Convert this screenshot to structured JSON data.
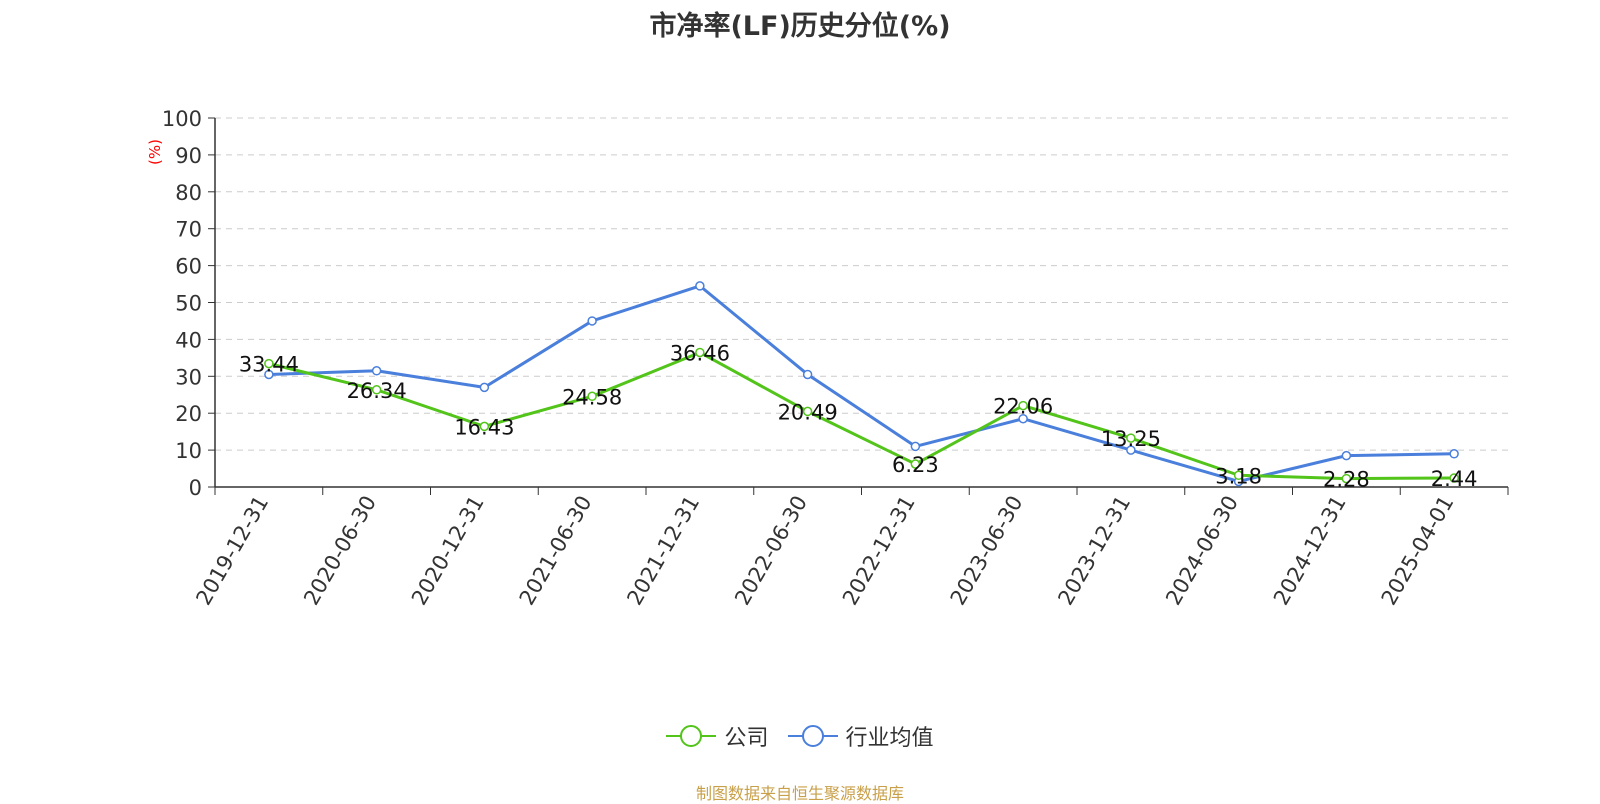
{
  "chart_data": {
    "type": "line",
    "title": "市净率(LF)历史分位(%)",
    "ylabel": "(%)",
    "ylim": [
      0,
      100
    ],
    "yticks": [
      0,
      10,
      20,
      30,
      40,
      50,
      60,
      70,
      80,
      90,
      100
    ],
    "categories": [
      "2019-12-31",
      "2020-06-30",
      "2020-12-31",
      "2021-06-30",
      "2021-12-31",
      "2022-06-30",
      "2022-12-31",
      "2023-06-30",
      "2023-12-31",
      "2024-06-30",
      "2024-12-31",
      "2025-04-01"
    ],
    "series": [
      {
        "name": "公司",
        "color": "#52c41a",
        "values": [
          33.44,
          26.34,
          16.43,
          24.58,
          36.46,
          20.49,
          6.23,
          22.06,
          13.25,
          3.18,
          2.28,
          2.44
        ],
        "labels": [
          "33.44",
          "26.34",
          "16.43",
          "24.58",
          "36.46",
          "20.49",
          "6.23",
          "22.06",
          "13.25",
          "3.18",
          "2.28",
          "2.44"
        ]
      },
      {
        "name": "行业均值",
        "color": "#4a7fdc",
        "values": [
          30.5,
          31.5,
          27.0,
          45.0,
          54.5,
          30.5,
          11.0,
          18.5,
          10.0,
          1.5,
          8.5,
          9.0
        ]
      }
    ],
    "grid": true,
    "legend_position": "bottom-center"
  },
  "source_text": "制图数据来自恒生聚源数据库"
}
